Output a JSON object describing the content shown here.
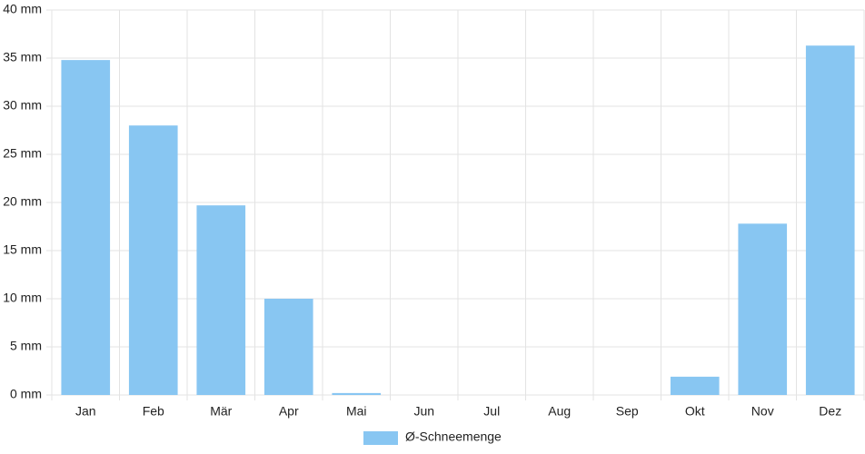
{
  "chart_data": {
    "type": "bar",
    "categories": [
      "Jan",
      "Feb",
      "Mär",
      "Apr",
      "Mai",
      "Jun",
      "Jul",
      "Aug",
      "Sep",
      "Okt",
      "Nov",
      "Dez"
    ],
    "series": [
      {
        "name": "Ø-Schneemenge",
        "color": "#88c6f2",
        "values": [
          34.8,
          28.0,
          19.7,
          10.0,
          0.2,
          0,
          0,
          0,
          0,
          1.9,
          17.8,
          36.3
        ]
      }
    ],
    "ylim": [
      0,
      40
    ],
    "yticks": [
      {
        "value": 0,
        "label": "0 mm"
      },
      {
        "value": 5,
        "label": "5 mm"
      },
      {
        "value": 10,
        "label": "10 mm"
      },
      {
        "value": 15,
        "label": "15 mm"
      },
      {
        "value": 20,
        "label": "20 mm"
      },
      {
        "value": 25,
        "label": "25 mm"
      },
      {
        "value": 30,
        "label": "30 mm"
      },
      {
        "value": 35,
        "label": "35 mm"
      },
      {
        "value": 40,
        "label": "40 mm"
      }
    ],
    "grid": true,
    "legend": "bottom"
  }
}
